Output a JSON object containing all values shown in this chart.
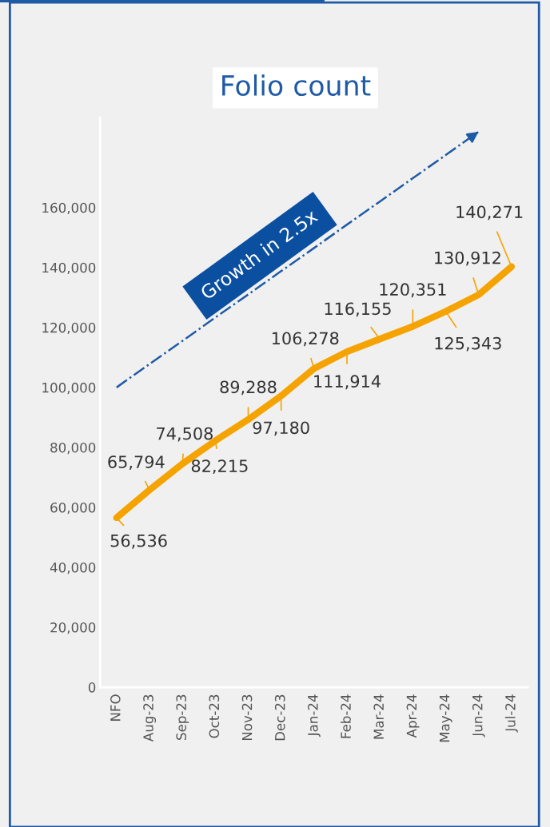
{
  "chart_data": {
    "type": "line",
    "title": "Folio count",
    "categories": [
      "NFO",
      "Aug-23",
      "Sep-23",
      "Oct-23",
      "Nov-23",
      "Dec-23",
      "Jan-24",
      "Feb-24",
      "Mar-24",
      "Apr-24",
      "May-24",
      "Jun-24",
      "Jul-24"
    ],
    "series": [
      {
        "color": "#f5a300",
        "values": [
          56536,
          65794,
          74508,
          82215,
          89288,
          97180,
          106278,
          111914,
          116155,
          120351,
          125343,
          130912,
          140271
        ]
      },
      {
        "type": "line",
        "color": "#1f5aa6",
        "line_style": "dashdot",
        "values": [
          100000,
          107800,
          115500,
          123300,
          131000,
          138800,
          146500,
          154300,
          162000,
          169800,
          177500,
          185300,
          null
        ]
      }
    ],
    "ylim": [
      0,
      190000
    ],
    "yticks": [
      {
        "value": 0,
        "label": "0"
      },
      {
        "value": 20000,
        "label": "20,000"
      },
      {
        "value": 40000,
        "label": "40,000"
      },
      {
        "value": 60000,
        "label": "60,000"
      },
      {
        "value": 80000,
        "label": "80,000"
      },
      {
        "value": 100000,
        "label": "100,000"
      },
      {
        "value": 120000,
        "label": "120,000"
      },
      {
        "value": 140000,
        "label": "140,000"
      },
      {
        "value": 160000,
        "label": "160,000"
      }
    ],
    "value_labels": [
      "56,536",
      "65,794",
      "74,508",
      "82,215",
      "89,288",
      "97,180",
      "106,278",
      "111,914",
      "116,155",
      "120,351",
      "125,343",
      "130,912",
      "140,271"
    ],
    "grid": false,
    "legend": false,
    "marker": "none",
    "line_style": "solid",
    "annotations": [
      "Growth in 2.5x"
    ]
  }
}
